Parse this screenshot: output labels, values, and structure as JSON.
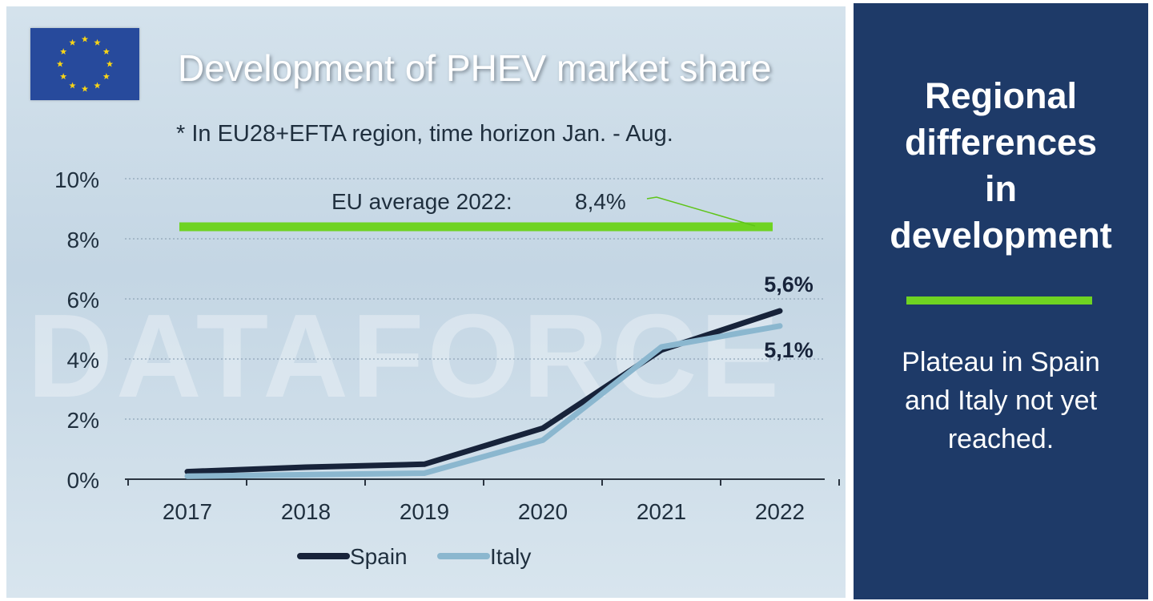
{
  "chart_data": {
    "type": "line",
    "title": "Development of PHEV market share",
    "subtitle": "* In EU28+EFTA region, time horizon Jan. - Aug.",
    "categories": [
      "2017",
      "2018",
      "2019",
      "2020",
      "2021",
      "2022"
    ],
    "series": [
      {
        "name": "Spain",
        "values": [
          0.25,
          0.4,
          0.5,
          1.7,
          4.3,
          5.6
        ],
        "color": "#17233a"
      },
      {
        "name": "Italy",
        "values": [
          0.1,
          0.15,
          0.2,
          1.3,
          4.4,
          5.1
        ],
        "color": "#8bb7cf"
      }
    ],
    "reference_line": {
      "label": "EU average 2022:",
      "value_label": "8,4%",
      "value": 8.4,
      "color": "#6fd322"
    },
    "end_labels": [
      "5,6%",
      "5,1%"
    ],
    "y_ticks": [
      "0%",
      "2%",
      "4%",
      "6%",
      "8%",
      "10%"
    ],
    "ylim": [
      0,
      10
    ],
    "grid": "horizontal dotted",
    "legend_position": "bottom-center"
  },
  "watermark": "DATAFORCE",
  "flag_icon": "eu-flag",
  "panel": {
    "heading_lines": [
      "Regional",
      "differences",
      "in",
      "development"
    ],
    "text_lines": [
      "Plateau in Spain",
      "and Italy not yet",
      "reached."
    ],
    "background": "#1e3a68",
    "accent": "#6fd322"
  }
}
